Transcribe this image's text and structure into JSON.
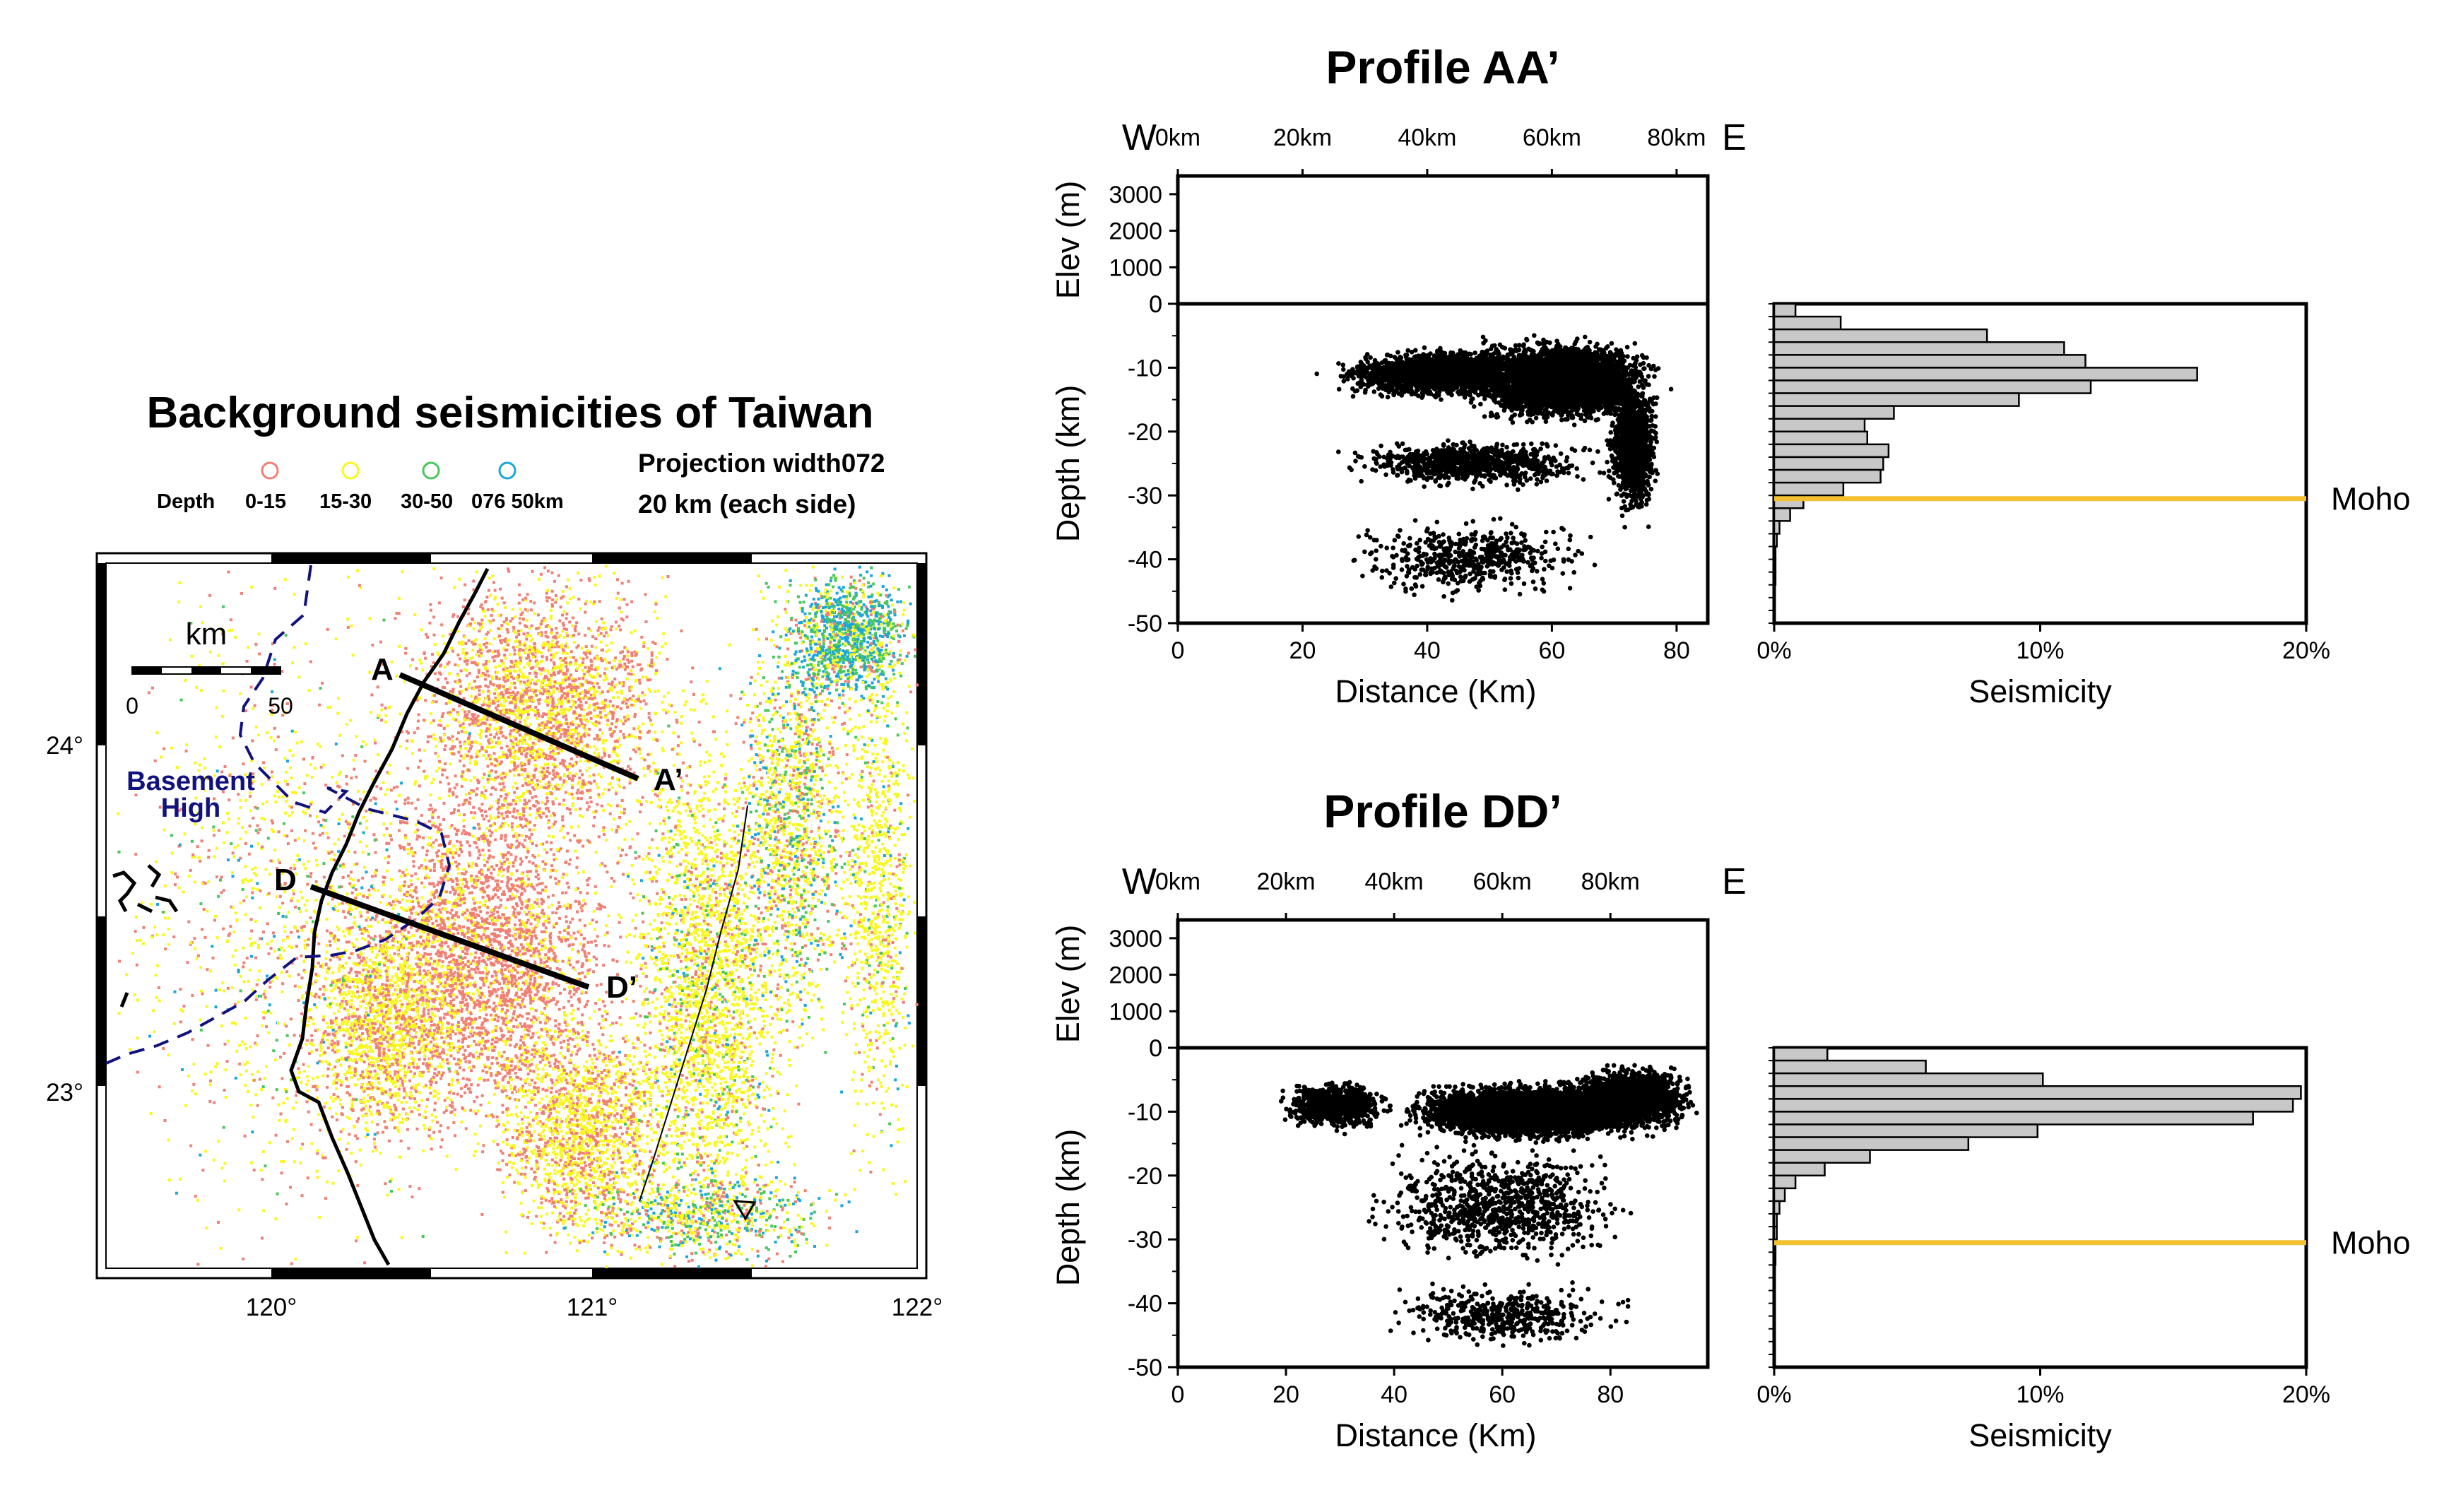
{
  "map": {
    "title": "Background seismicities of Taiwan",
    "legend": {
      "depth_label": "Depth",
      "classes": [
        {
          "label": "0-15",
          "color": "#f07f75"
        },
        {
          "label": "15-30",
          "color": "#f8f81c"
        },
        {
          "label": "30-50",
          "color": "#49c75b"
        },
        {
          "label": "076 50km",
          "color": "#19a7d9"
        }
      ]
    },
    "projection_line1": "Projection width072",
    "projection_line2": "20 km (each side)",
    "scale": {
      "unit": "km",
      "ticks": [
        "0",
        "50"
      ]
    },
    "basement": [
      "Basement",
      "High"
    ],
    "basement_color": "#12127f",
    "lon_ticks": [
      "120°",
      "121°",
      "122°"
    ],
    "lat_ticks": [
      "24°",
      "23°"
    ],
    "profiles": [
      {
        "start": "A",
        "end": "A’"
      },
      {
        "start": "D",
        "end": "D’"
      }
    ]
  },
  "chart_data": [
    {
      "type": "scatter",
      "title": "Profile AA’",
      "dir_left": "W",
      "dir_right": "E",
      "top_ticks": [
        "0km",
        "20km",
        "40km",
        "60km",
        "80km"
      ],
      "elev_label": "Elev (m)",
      "elev_ticks": [
        3000,
        2000,
        1000,
        0
      ],
      "xlabel": "Distance (Km)",
      "ylabel": "Depth (km)",
      "xlim": [
        0,
        85
      ],
      "ylim": [
        -50,
        0
      ],
      "x_ticks": [
        0,
        20,
        40,
        60,
        80
      ],
      "y_ticks": [
        0,
        -10,
        -20,
        -30,
        -40,
        -50
      ],
      "histogram": {
        "xlabel": "Seismicity",
        "x_ticks": [
          "0%",
          "10%",
          "20%"
        ],
        "xlim": [
          0,
          20
        ],
        "bin_depths": [
          0,
          -2,
          -4,
          -6,
          -8,
          -10,
          -12,
          -14,
          -16,
          -18,
          -20,
          -22,
          -24,
          -26,
          -28,
          -30,
          -32,
          -34,
          -36,
          -38,
          -40,
          -42,
          -44,
          -46,
          -48
        ],
        "values": [
          0.8,
          2.5,
          8.0,
          10.9,
          11.7,
          15.9,
          11.9,
          9.2,
          4.5,
          3.4,
          3.5,
          4.3,
          4.1,
          4.0,
          2.6,
          1.1,
          0.6,
          0.2,
          0.1,
          0.05,
          0.05,
          0.05,
          0.02,
          0.02,
          0.0
        ],
        "moho_depth": -30.5,
        "moho_label": "Moho"
      }
    },
    {
      "type": "scatter",
      "title": "Profile DD’",
      "dir_left": "W",
      "dir_right": "E",
      "top_ticks": [
        "0km",
        "20km",
        "40km",
        "60km",
        "80km"
      ],
      "elev_label": "Elev (m)",
      "elev_ticks": [
        3000,
        2000,
        1000,
        0
      ],
      "xlabel": "Distance (Km)",
      "ylabel": "Depth (km)",
      "xlim": [
        0,
        98
      ],
      "ylim": [
        -50,
        0
      ],
      "x_ticks": [
        0,
        20,
        40,
        60,
        80
      ],
      "y_ticks": [
        0,
        -10,
        -20,
        -30,
        -40,
        -50
      ],
      "histogram": {
        "xlabel": "Seismicity",
        "x_ticks": [
          "0%",
          "10%",
          "20%"
        ],
        "xlim": [
          0,
          20
        ],
        "bin_depths": [
          0,
          -2,
          -4,
          -6,
          -8,
          -10,
          -12,
          -14,
          -16,
          -18,
          -20,
          -22,
          -24,
          -26,
          -28,
          -30,
          -32,
          -34,
          -36,
          -38,
          -40,
          -42,
          -44,
          -46,
          -48
        ],
        "values": [
          2.0,
          5.7,
          10.1,
          19.8,
          19.5,
          18.0,
          9.9,
          7.3,
          3.6,
          1.9,
          0.8,
          0.4,
          0.2,
          0.1,
          0.1,
          0.05,
          0.05,
          0.02,
          0.02,
          0.02,
          0.02,
          0.01,
          0.01,
          0.01,
          0.0
        ],
        "moho_depth": -30.5,
        "moho_label": "Moho"
      }
    }
  ],
  "colors": {
    "moho": "#f4c033",
    "bar_fill": "#c8c8c8",
    "dots": "#000000",
    "coast": "#000000"
  }
}
